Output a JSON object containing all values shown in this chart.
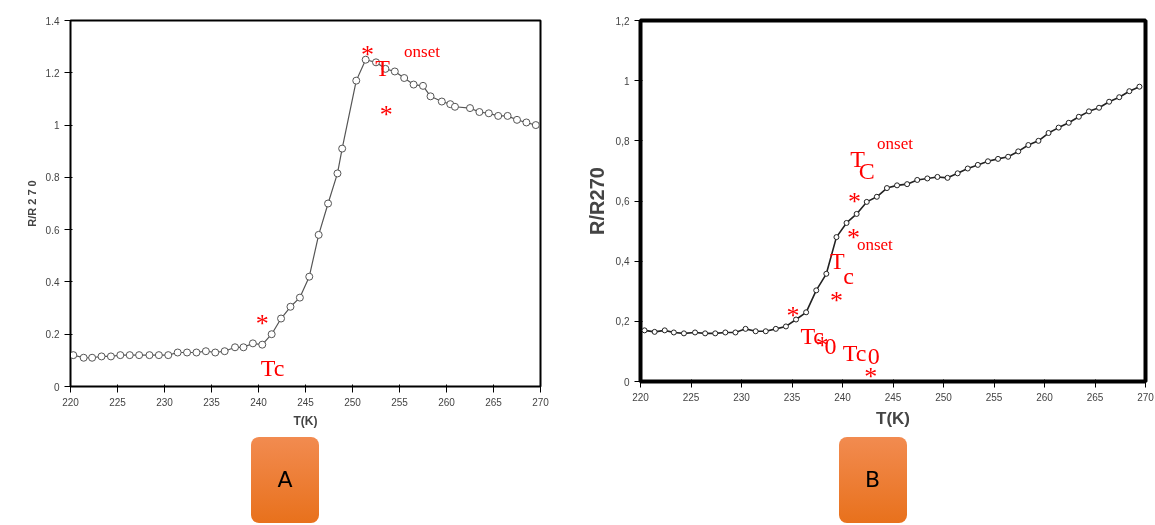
{
  "chart_data": [
    {
      "type": "line",
      "xlabel": "T(K)",
      "ylabel": "R/R 2 7 0",
      "marker": "circle",
      "line_style": "solid",
      "grid": false,
      "series": [
        {
          "color": "#555555",
          "x": [
            220.3,
            221.4,
            222.3,
            223.3,
            224.3,
            225.3,
            226.3,
            227.3,
            228.4,
            229.4,
            230.4,
            231.4,
            232.4,
            233.4,
            234.4,
            235.4,
            236.4,
            237.5,
            238.4,
            239.4,
            240.4,
            241.4,
            242.4,
            243.4,
            244.4,
            245.4,
            246.4,
            247.4,
            248.4,
            248.9,
            250.4,
            251.4,
            252.5,
            253.5,
            254.5,
            255.5,
            256.5,
            257.5,
            258.3,
            259.5,
            260.4,
            260.9,
            262.5,
            263.5,
            264.5,
            265.5,
            266.5,
            267.5,
            268.5,
            269.5
          ],
          "values": [
            0.12,
            0.11,
            0.11,
            0.115,
            0.115,
            0.12,
            0.12,
            0.12,
            0.12,
            0.12,
            0.12,
            0.13,
            0.13,
            0.13,
            0.135,
            0.13,
            0.135,
            0.15,
            0.15,
            0.165,
            0.16,
            0.2,
            0.26,
            0.305,
            0.34,
            0.42,
            0.58,
            0.7,
            0.815,
            0.91,
            1.17,
            1.25,
            1.24,
            1.215,
            1.205,
            1.18,
            1.155,
            1.15,
            1.11,
            1.09,
            1.08,
            1.07,
            1.065,
            1.05,
            1.045,
            1.035,
            1.035,
            1.02,
            1.01,
            1.0
          ]
        }
      ],
      "xlim": [
        220,
        270
      ],
      "xticks": [
        220,
        225,
        230,
        235,
        240,
        245,
        250,
        255,
        260,
        265,
        270
      ],
      "ylim": [
        0,
        1.4
      ],
      "yticks": [
        0,
        0.2,
        0.4,
        0.6,
        0.8,
        1,
        1.2,
        1.4
      ],
      "annotations": [
        "*",
        "Tc",
        "*",
        "T",
        "onset",
        "*"
      ],
      "subtitle": "A"
    },
    {
      "type": "line",
      "xlabel": "T(K)",
      "ylabel": "R/R270",
      "marker": "circle",
      "line_style": "solid",
      "grid": false,
      "series": [
        {
          "color": "#222222",
          "x": [
            220.4,
            221.4,
            222.4,
            223.3,
            224.3,
            225.4,
            226.4,
            227.4,
            228.4,
            229.4,
            230.4,
            231.4,
            232.4,
            233.4,
            234.4,
            235.4,
            236.4,
            237.4,
            238.4,
            239.4,
            240.4,
            241.4,
            242.4,
            243.4,
            244.4,
            245.4,
            246.4,
            247.4,
            248.4,
            249.4,
            250.4,
            251.4,
            252.4,
            253.4,
            254.4,
            255.4,
            256.4,
            257.4,
            258.4,
            259.4,
            260.4,
            261.4,
            262.4,
            263.4,
            264.4,
            265.4,
            266.4,
            267.4,
            268.4,
            269.4
          ],
          "values": [
            0.17,
            0.165,
            0.17,
            0.163,
            0.16,
            0.163,
            0.16,
            0.16,
            0.163,
            0.163,
            0.175,
            0.167,
            0.167,
            0.175,
            0.183,
            0.206,
            0.23,
            0.303,
            0.358,
            0.48,
            0.527,
            0.557,
            0.597,
            0.614,
            0.643,
            0.652,
            0.656,
            0.67,
            0.675,
            0.68,
            0.677,
            0.692,
            0.708,
            0.72,
            0.732,
            0.74,
            0.747,
            0.765,
            0.786,
            0.8,
            0.826,
            0.844,
            0.86,
            0.88,
            0.898,
            0.91,
            0.93,
            0.945,
            0.965,
            0.98
          ]
        }
      ],
      "xlim": [
        220,
        270
      ],
      "xticks": [
        220,
        225,
        230,
        235,
        240,
        245,
        250,
        255,
        260,
        265,
        270
      ],
      "ylim": [
        0,
        1.2
      ],
      "yticks": [
        0,
        {
          "value": 0.2,
          "label": "0,2"
        },
        {
          "value": 0.4,
          "label": "0,4"
        },
        {
          "value": 0.6,
          "label": "0,6"
        },
        {
          "value": 0.8,
          "label": "0,8"
        },
        1,
        {
          "value": 1.2,
          "label": "1,2"
        }
      ],
      "annotations": [
        "T",
        "C",
        "onset",
        "*",
        "*",
        "onset",
        "T",
        "c",
        "*",
        "*",
        "Tc",
        "*",
        "0",
        "Tc",
        "0",
        "*"
      ],
      "subtitle": "B"
    }
  ]
}
